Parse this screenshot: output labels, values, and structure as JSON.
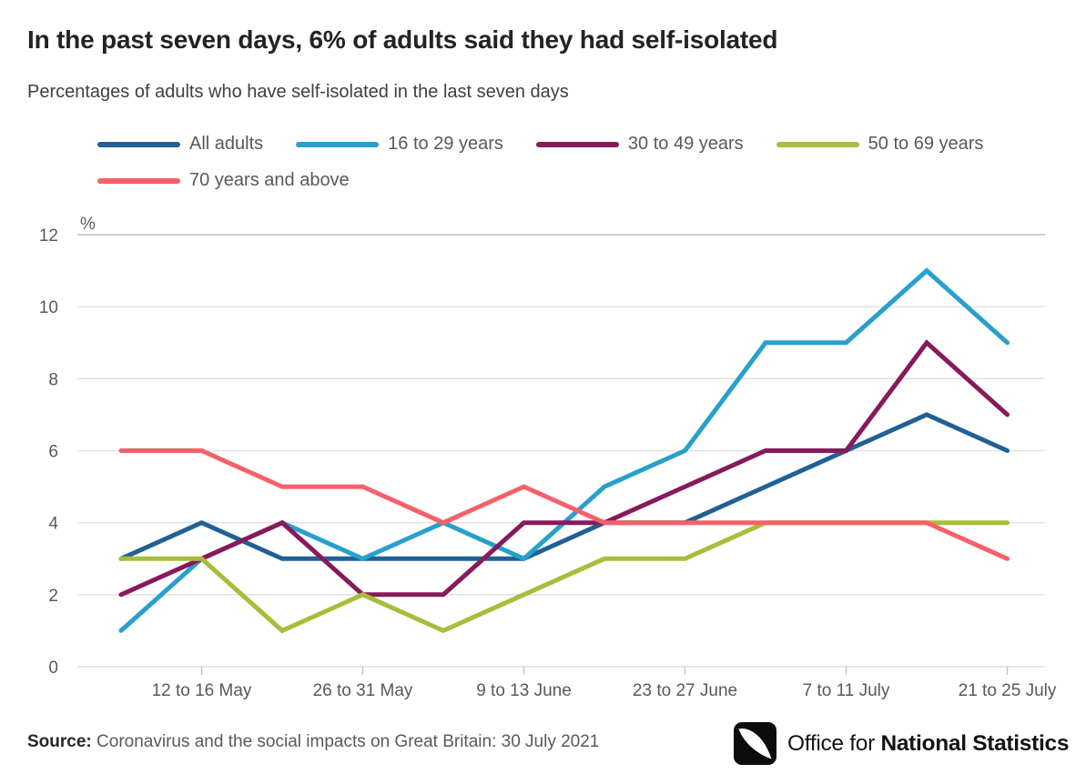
{
  "title": "In the past seven days, 6% of adults said they had self-isolated",
  "subtitle": "Percentages of adults who have self-isolated in the last seven days",
  "source": {
    "label": "Source:",
    "text": " Coronavirus and the social impacts on Great Britain: 30 July 2021"
  },
  "logo": {
    "prefix": "Office for ",
    "bold": "National Statistics"
  },
  "chart_data": {
    "type": "line",
    "unit_label": "%",
    "n_points": 12,
    "x_tick_labels": [
      "12 to 16 May",
      "26 to 31 May",
      "9 to 13 June",
      "23 to 27 June",
      "7 to 11 July",
      "21 to 25 July"
    ],
    "tick_point_indices": [
      1,
      3,
      5,
      7,
      9,
      11
    ],
    "yticks": [
      0,
      2,
      4,
      6,
      8,
      10,
      12
    ],
    "ylim": [
      0,
      12
    ],
    "grid": "horizontal",
    "legend_position": "top",
    "series": [
      {
        "name": "All adults",
        "color": "#206095",
        "values": [
          3,
          4,
          3,
          3,
          3,
          3,
          4,
          4,
          5,
          6,
          7,
          6
        ]
      },
      {
        "name": "16 to 29 years",
        "color": "#27A0CC",
        "values": [
          1,
          3,
          4,
          3,
          4,
          3,
          5,
          6,
          9,
          9,
          11,
          9
        ]
      },
      {
        "name": "30 to 49 years",
        "color": "#871A5B",
        "values": [
          2,
          3,
          4,
          2,
          2,
          4,
          4,
          5,
          6,
          6,
          9,
          7
        ]
      },
      {
        "name": "50 to 69 years",
        "color": "#A8BD3A",
        "values": [
          3,
          3,
          1,
          2,
          1,
          2,
          3,
          3,
          4,
          4,
          4,
          4
        ]
      },
      {
        "name": "70 years and above",
        "color": "#F66068",
        "values": [
          6,
          6,
          5,
          5,
          4,
          5,
          4,
          4,
          4,
          4,
          4,
          3
        ]
      }
    ]
  }
}
